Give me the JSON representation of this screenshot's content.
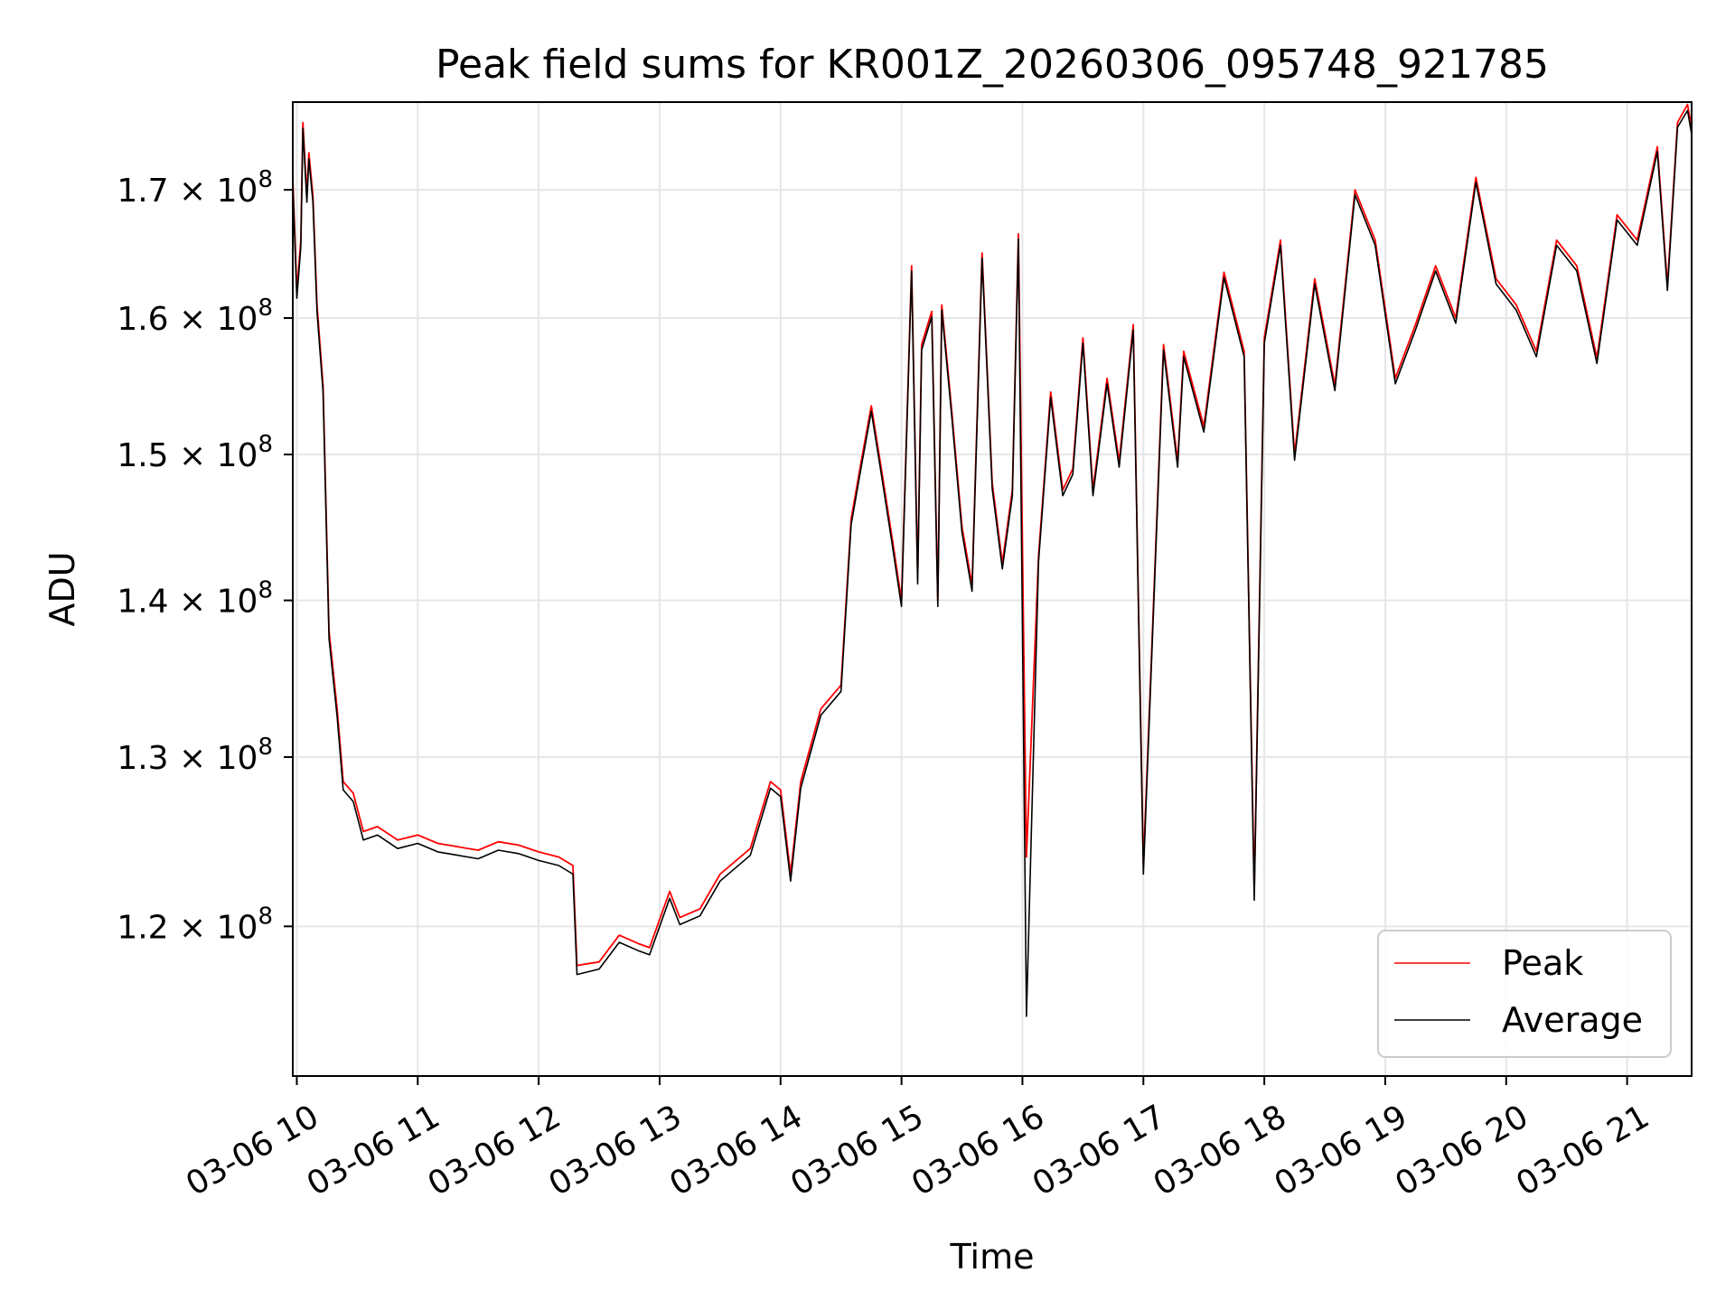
{
  "chart_data": {
    "type": "line",
    "title": "Peak field sums for KR001Z_20260306_095748_921785",
    "xlabel": "Time",
    "ylabel": "ADU",
    "yscale": "log",
    "grid": true,
    "legend_position": "lower right",
    "xlim": [
      "2026-03-06 09:58",
      "2026-03-06 21:32"
    ],
    "ylim": [
      111800000,
      177200000
    ],
    "x_ticks": [
      {
        "value": "2026-03-06 10:00",
        "label": "03-06 10"
      },
      {
        "value": "2026-03-06 11:00",
        "label": "03-06 11"
      },
      {
        "value": "2026-03-06 12:00",
        "label": "03-06 12"
      },
      {
        "value": "2026-03-06 13:00",
        "label": "03-06 13"
      },
      {
        "value": "2026-03-06 14:00",
        "label": "03-06 14"
      },
      {
        "value": "2026-03-06 15:00",
        "label": "03-06 15"
      },
      {
        "value": "2026-03-06 16:00",
        "label": "03-06 16"
      },
      {
        "value": "2026-03-06 17:00",
        "label": "03-06 17"
      },
      {
        "value": "2026-03-06 18:00",
        "label": "03-06 18"
      },
      {
        "value": "2026-03-06 19:00",
        "label": "03-06 19"
      },
      {
        "value": "2026-03-06 20:00",
        "label": "03-06 20"
      },
      {
        "value": "2026-03-06 21:00",
        "label": "03-06 21"
      }
    ],
    "y_ticks": [
      {
        "value": 120000000,
        "mantissa": "1.2",
        "base": "10",
        "exp": "8"
      },
      {
        "value": 130000000,
        "mantissa": "1.3",
        "base": "10",
        "exp": "8"
      },
      {
        "value": 140000000,
        "mantissa": "1.4",
        "base": "10",
        "exp": "8"
      },
      {
        "value": 150000000,
        "mantissa": "1.5",
        "base": "10",
        "exp": "8"
      },
      {
        "value": 160000000,
        "mantissa": "1.6",
        "base": "10",
        "exp": "8"
      },
      {
        "value": 170000000,
        "mantissa": "1.7",
        "base": "10",
        "exp": "8"
      }
    ],
    "series": [
      {
        "name": "Peak",
        "color": "#ff0000",
        "x": [
          "2026-03-06 09:58",
          "2026-03-06 10:00",
          "2026-03-06 10:02",
          "2026-03-06 10:03",
          "2026-03-06 10:05",
          "2026-03-06 10:06",
          "2026-03-06 10:08",
          "2026-03-06 10:10",
          "2026-03-06 10:13",
          "2026-03-06 10:16",
          "2026-03-06 10:20",
          "2026-03-06 10:23",
          "2026-03-06 10:28",
          "2026-03-06 10:33",
          "2026-03-06 10:40",
          "2026-03-06 10:50",
          "2026-03-06 11:00",
          "2026-03-06 11:10",
          "2026-03-06 11:20",
          "2026-03-06 11:30",
          "2026-03-06 11:40",
          "2026-03-06 11:50",
          "2026-03-06 12:00",
          "2026-03-06 12:10",
          "2026-03-06 12:17",
          "2026-03-06 12:19",
          "2026-03-06 12:30",
          "2026-03-06 12:40",
          "2026-03-06 12:50",
          "2026-03-06 12:55",
          "2026-03-06 13:05",
          "2026-03-06 13:10",
          "2026-03-06 13:20",
          "2026-03-06 13:30",
          "2026-03-06 13:45",
          "2026-03-06 13:55",
          "2026-03-06 14:00",
          "2026-03-06 14:05",
          "2026-03-06 14:10",
          "2026-03-06 14:20",
          "2026-03-06 14:30",
          "2026-03-06 14:35",
          "2026-03-06 14:40",
          "2026-03-06 14:45",
          "2026-03-06 14:50",
          "2026-03-06 14:55",
          "2026-03-06 15:00",
          "2026-03-06 15:05",
          "2026-03-06 15:08",
          "2026-03-06 15:10",
          "2026-03-06 15:15",
          "2026-03-06 15:18",
          "2026-03-06 15:20",
          "2026-03-06 15:25",
          "2026-03-06 15:30",
          "2026-03-06 15:35",
          "2026-03-06 15:40",
          "2026-03-06 15:45",
          "2026-03-06 15:50",
          "2026-03-06 15:55",
          "2026-03-06 15:58",
          "2026-03-06 16:02",
          "2026-03-06 16:08",
          "2026-03-06 16:14",
          "2026-03-06 16:20",
          "2026-03-06 16:25",
          "2026-03-06 16:30",
          "2026-03-06 16:35",
          "2026-03-06 16:42",
          "2026-03-06 16:48",
          "2026-03-06 16:55",
          "2026-03-06 17:00",
          "2026-03-06 17:10",
          "2026-03-06 17:17",
          "2026-03-06 17:20",
          "2026-03-06 17:30",
          "2026-03-06 17:40",
          "2026-03-06 17:50",
          "2026-03-06 17:55",
          "2026-03-06 18:00",
          "2026-03-06 18:08",
          "2026-03-06 18:15",
          "2026-03-06 18:25",
          "2026-03-06 18:35",
          "2026-03-06 18:45",
          "2026-03-06 18:55",
          "2026-03-06 19:05",
          "2026-03-06 19:15",
          "2026-03-06 19:25",
          "2026-03-06 19:35",
          "2026-03-06 19:45",
          "2026-03-06 19:55",
          "2026-03-06 20:05",
          "2026-03-06 20:15",
          "2026-03-06 20:25",
          "2026-03-06 20:35",
          "2026-03-06 20:45",
          "2026-03-06 20:55",
          "2026-03-06 21:05",
          "2026-03-06 21:15",
          "2026-03-06 21:20",
          "2026-03-06 21:25",
          "2026-03-06 21:30",
          "2026-03-06 21:32"
        ],
        "values": [
          171000000,
          162000000,
          166000000,
          175500000,
          169500000,
          173000000,
          169500000,
          161000000,
          155000000,
          138000000,
          133000000,
          128500000,
          127800000,
          125500000,
          125800000,
          125000000,
          125300000,
          124800000,
          124600000,
          124400000,
          124900000,
          124700000,
          124300000,
          124000000,
          123500000,
          117800000,
          118000000,
          119500000,
          119000000,
          118800000,
          122000000,
          120500000,
          121000000,
          123000000,
          124500000,
          128500000,
          128000000,
          123000000,
          128500000,
          133000000,
          134500000,
          145500000,
          149500000,
          153500000,
          149000000,
          144500000,
          140000000,
          164000000,
          141500000,
          158000000,
          160500000,
          140000000,
          161000000,
          153000000,
          145000000,
          141000000,
          165000000,
          148000000,
          142500000,
          147500000,
          166500000,
          124000000,
          143000000,
          154500000,
          147500000,
          149000000,
          158500000,
          147500000,
          155500000,
          149500000,
          159500000,
          123500000,
          158000000,
          149500000,
          157500000,
          152000000,
          163500000,
          157500000,
          122000000,
          158500000,
          166000000,
          150000000,
          163000000,
          155000000,
          170000000,
          166000000,
          155500000,
          159500000,
          164000000,
          160000000,
          171000000,
          163000000,
          161000000,
          157500000,
          166000000,
          164000000,
          157000000,
          168000000,
          166000000,
          173500000,
          162500000,
          175500000,
          177000000,
          175000000
        ]
      },
      {
        "name": "Average",
        "color": "#000000",
        "x": [
          "2026-03-06 09:58",
          "2026-03-06 10:00",
          "2026-03-06 10:02",
          "2026-03-06 10:03",
          "2026-03-06 10:05",
          "2026-03-06 10:06",
          "2026-03-06 10:08",
          "2026-03-06 10:10",
          "2026-03-06 10:13",
          "2026-03-06 10:16",
          "2026-03-06 10:20",
          "2026-03-06 10:23",
          "2026-03-06 10:28",
          "2026-03-06 10:33",
          "2026-03-06 10:40",
          "2026-03-06 10:50",
          "2026-03-06 11:00",
          "2026-03-06 11:10",
          "2026-03-06 11:20",
          "2026-03-06 11:30",
          "2026-03-06 11:40",
          "2026-03-06 11:50",
          "2026-03-06 12:00",
          "2026-03-06 12:10",
          "2026-03-06 12:17",
          "2026-03-06 12:19",
          "2026-03-06 12:30",
          "2026-03-06 12:40",
          "2026-03-06 12:50",
          "2026-03-06 12:55",
          "2026-03-06 13:05",
          "2026-03-06 13:10",
          "2026-03-06 13:20",
          "2026-03-06 13:30",
          "2026-03-06 13:45",
          "2026-03-06 13:55",
          "2026-03-06 14:00",
          "2026-03-06 14:05",
          "2026-03-06 14:10",
          "2026-03-06 14:20",
          "2026-03-06 14:30",
          "2026-03-06 14:35",
          "2026-03-06 14:40",
          "2026-03-06 14:45",
          "2026-03-06 14:50",
          "2026-03-06 14:55",
          "2026-03-06 15:00",
          "2026-03-06 15:05",
          "2026-03-06 15:08",
          "2026-03-06 15:10",
          "2026-03-06 15:15",
          "2026-03-06 15:18",
          "2026-03-06 15:20",
          "2026-03-06 15:25",
          "2026-03-06 15:30",
          "2026-03-06 15:35",
          "2026-03-06 15:40",
          "2026-03-06 15:45",
          "2026-03-06 15:50",
          "2026-03-06 15:55",
          "2026-03-06 15:58",
          "2026-03-06 16:02",
          "2026-03-06 16:08",
          "2026-03-06 16:14",
          "2026-03-06 16:20",
          "2026-03-06 16:25",
          "2026-03-06 16:30",
          "2026-03-06 16:35",
          "2026-03-06 16:42",
          "2026-03-06 16:48",
          "2026-03-06 16:55",
          "2026-03-06 17:00",
          "2026-03-06 17:10",
          "2026-03-06 17:17",
          "2026-03-06 17:20",
          "2026-03-06 17:30",
          "2026-03-06 17:40",
          "2026-03-06 17:50",
          "2026-03-06 17:55",
          "2026-03-06 18:00",
          "2026-03-06 18:08",
          "2026-03-06 18:15",
          "2026-03-06 18:25",
          "2026-03-06 18:35",
          "2026-03-06 18:45",
          "2026-03-06 18:55",
          "2026-03-06 19:05",
          "2026-03-06 19:15",
          "2026-03-06 19:25",
          "2026-03-06 19:35",
          "2026-03-06 19:45",
          "2026-03-06 19:55",
          "2026-03-06 20:05",
          "2026-03-06 20:15",
          "2026-03-06 20:25",
          "2026-03-06 20:35",
          "2026-03-06 20:45",
          "2026-03-06 20:55",
          "2026-03-06 21:05",
          "2026-03-06 21:15",
          "2026-03-06 21:20",
          "2026-03-06 21:25",
          "2026-03-06 21:30",
          "2026-03-06 21:32"
        ],
        "values": [
          170500000,
          161500000,
          165500000,
          175000000,
          169000000,
          172500000,
          169000000,
          160500000,
          154500000,
          137500000,
          132500000,
          128000000,
          127300000,
          125000000,
          125300000,
          124500000,
          124800000,
          124300000,
          124100000,
          123900000,
          124400000,
          124200000,
          123800000,
          123500000,
          123000000,
          117300000,
          117600000,
          119100000,
          118600000,
          118400000,
          121600000,
          120100000,
          120600000,
          122600000,
          124100000,
          128100000,
          127600000,
          122600000,
          128100000,
          132600000,
          134100000,
          145100000,
          149100000,
          153100000,
          148600000,
          144100000,
          139600000,
          163600000,
          141100000,
          157600000,
          160100000,
          139600000,
          160600000,
          152600000,
          144600000,
          140600000,
          164600000,
          147600000,
          142100000,
          147100000,
          166100000,
          115000000,
          142600000,
          154100000,
          147100000,
          148600000,
          158100000,
          147100000,
          155100000,
          149100000,
          159100000,
          123000000,
          157600000,
          149100000,
          157100000,
          151600000,
          163100000,
          157100000,
          121500000,
          158100000,
          165600000,
          149600000,
          162600000,
          154600000,
          169600000,
          165600000,
          155100000,
          159100000,
          163600000,
          159600000,
          170600000,
          162600000,
          160600000,
          157100000,
          165600000,
          163600000,
          156600000,
          167600000,
          165600000,
          173100000,
          162100000,
          175100000,
          176500000,
          174500000
        ]
      }
    ]
  }
}
